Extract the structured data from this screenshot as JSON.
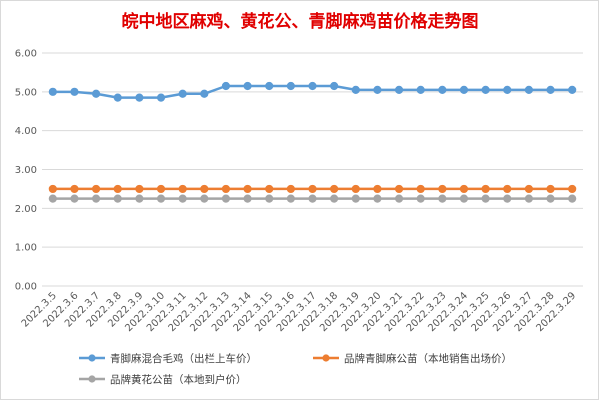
{
  "chart_data": {
    "type": "line",
    "title": "皖中地区麻鸡、黄花公、青脚麻鸡苗价格走势图",
    "xlabel": "",
    "ylabel": "",
    "ylim": [
      0,
      6
    ],
    "yticks": [
      "6.00",
      "5.00",
      "4.00",
      "3.00",
      "2.00",
      "1.00",
      "0.00"
    ],
    "grid": true,
    "legend_position": "bottom",
    "categories": [
      "2022.3.5",
      "2022.3.6",
      "2022.3.7",
      "2022.3.8",
      "2022.3.9",
      "2022.3.10",
      "2022.3.11",
      "2022.3.12",
      "2022.3.13",
      "2022.3.14",
      "2022.3.15",
      "2022.3.16",
      "2022.3.17",
      "2022.3.18",
      "2022.3.19",
      "2022.3.20",
      "2022.3.21",
      "2022.3.22",
      "2022.3.23",
      "2022.3.24",
      "2022.3.25",
      "2022.3.26",
      "2022.3.27",
      "2022.3.28",
      "2022.3.29"
    ],
    "series": [
      {
        "name": "青脚麻混合毛鸡（出栏上车价）",
        "color": "#5b9bd5",
        "values": [
          5.0,
          5.0,
          4.95,
          4.85,
          4.85,
          4.85,
          4.95,
          4.95,
          5.15,
          5.15,
          5.15,
          5.15,
          5.15,
          5.15,
          5.05,
          5.05,
          5.05,
          5.05,
          5.05,
          5.05,
          5.05,
          5.05,
          5.05,
          5.05,
          5.05
        ]
      },
      {
        "name": "品牌青脚麻公苗（本地销售出场价）",
        "color": "#ed7d31",
        "values": [
          2.5,
          2.5,
          2.5,
          2.5,
          2.5,
          2.5,
          2.5,
          2.5,
          2.5,
          2.5,
          2.5,
          2.5,
          2.5,
          2.5,
          2.5,
          2.5,
          2.5,
          2.5,
          2.5,
          2.5,
          2.5,
          2.5,
          2.5,
          2.5,
          2.5
        ]
      },
      {
        "name": "品牌黄花公苗（本地到户价）",
        "color": "#a5a5a5",
        "values": [
          2.25,
          2.25,
          2.25,
          2.25,
          2.25,
          2.25,
          2.25,
          2.25,
          2.25,
          2.25,
          2.25,
          2.25,
          2.25,
          2.25,
          2.25,
          2.25,
          2.25,
          2.25,
          2.25,
          2.25,
          2.25,
          2.25,
          2.25,
          2.25,
          2.25
        ]
      }
    ],
    "gridline_color": "#d9d9d9"
  }
}
